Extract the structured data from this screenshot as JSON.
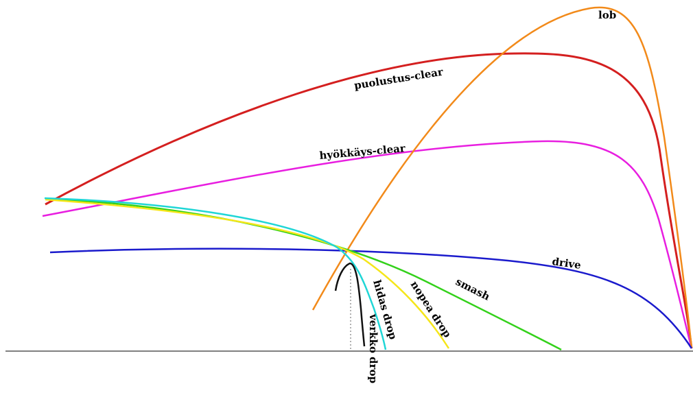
{
  "labels": {
    "lob": "lob",
    "puolustus_clear": "puolustus-clear",
    "hyokkays_clear": "hyökkäys-clear",
    "drive": "drive",
    "smash": "smash",
    "nopea_drop": "nopea drop",
    "hidas_drop": "hidas drop",
    "verkko_drop": "verkko drop"
  },
  "colors": {
    "background": "#ffffff",
    "ground": "#808080",
    "net_marker": "#606060",
    "lob": "#f28a1a",
    "puolustus_clear": "#d41f1f",
    "hyokkays_clear": "#e81ee0",
    "drive": "#1a1acc",
    "smash": "#33d11a",
    "nopea_drop": "#f5e61a",
    "hidas_drop": "#1fd6d6",
    "verkko_drop": "#111111"
  }
}
